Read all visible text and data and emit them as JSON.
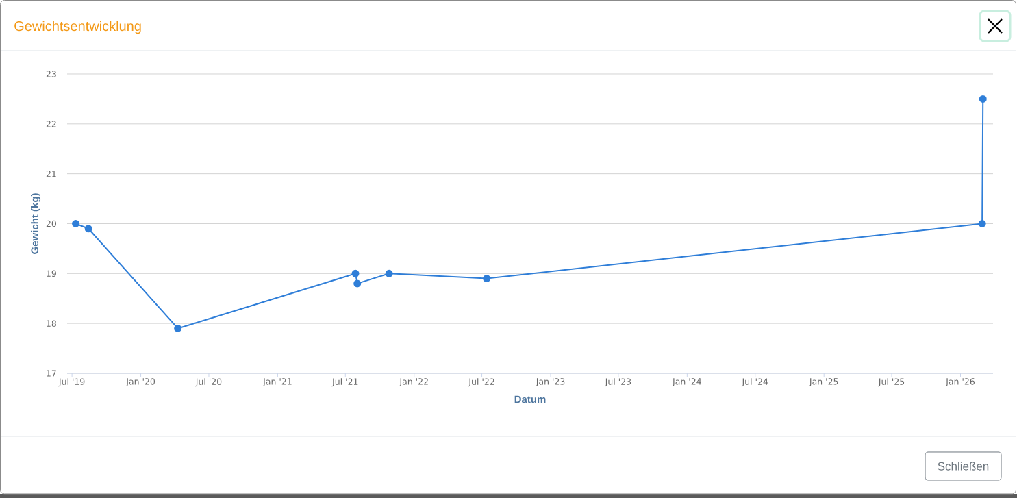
{
  "chart_data": {
    "type": "line",
    "title": "Gewichtsentwicklung",
    "xlabel": "Datum",
    "ylabel": "Gewicht (kg)",
    "x": [
      "2019-07-11",
      "2019-08-14",
      "2020-04-09",
      "2021-07-28",
      "2021-08-02",
      "2021-10-26",
      "2022-07-14",
      "2026-02-28",
      "2026-03-02"
    ],
    "values": [
      20.0,
      19.9,
      17.9,
      19.0,
      18.8,
      19.0,
      18.9,
      20.0,
      22.5
    ],
    "color": "#2f7ed8",
    "xlim": [
      "2019-06-18",
      "2026-03-29"
    ],
    "xticks": [
      {
        "value": "2019-07-01",
        "label": "Jul '19"
      },
      {
        "value": "2020-01-01",
        "label": "Jan '20"
      },
      {
        "value": "2020-07-01",
        "label": "Jul '20"
      },
      {
        "value": "2021-01-01",
        "label": "Jan '21"
      },
      {
        "value": "2021-07-01",
        "label": "Jul '21"
      },
      {
        "value": "2022-01-01",
        "label": "Jan '22"
      },
      {
        "value": "2022-07-01",
        "label": "Jul '22"
      },
      {
        "value": "2023-01-01",
        "label": "Jan '23"
      },
      {
        "value": "2023-07-01",
        "label": "Jul '23"
      },
      {
        "value": "2024-01-01",
        "label": "Jan '24"
      },
      {
        "value": "2024-07-01",
        "label": "Jul '24"
      },
      {
        "value": "2025-01-01",
        "label": "Jan '25"
      },
      {
        "value": "2025-07-01",
        "label": "Jul '25"
      },
      {
        "value": "2026-01-01",
        "label": "Jan '26"
      }
    ],
    "ylim": [
      17,
      23
    ],
    "yticks": [
      17,
      18,
      19,
      20,
      21,
      22,
      23
    ],
    "grid": "y",
    "marker": "circle",
    "line_style": "solid",
    "annotations": [
      "Schließen"
    ]
  }
}
